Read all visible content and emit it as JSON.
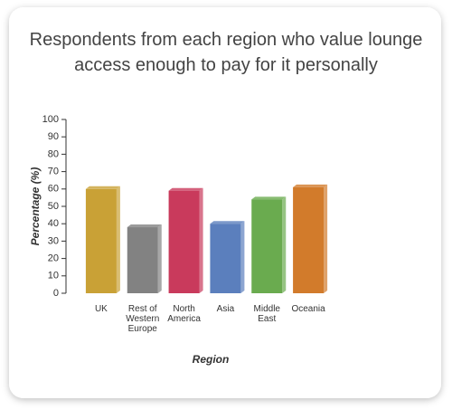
{
  "chart_data": {
    "type": "bar",
    "title": "Respondents from each region who value lounge access enough to pay for it personally",
    "x_label": "Region",
    "y_label": "Percentage (%)",
    "categories": [
      "UK",
      "Rest of Western Europe",
      "North America",
      "Asia",
      "Middle East",
      "Oceania"
    ],
    "values": [
      60,
      38,
      59,
      40,
      54,
      61
    ],
    "colors": [
      "#c9a136",
      "#828282",
      "#c93a5c",
      "#5b7fbd",
      "#6aab4f",
      "#d27b2b"
    ],
    "ylim": [
      0,
      100
    ],
    "yticks": [
      0,
      10,
      20,
      30,
      40,
      50,
      60,
      70,
      80,
      90,
      100
    ],
    "grid": false
  }
}
